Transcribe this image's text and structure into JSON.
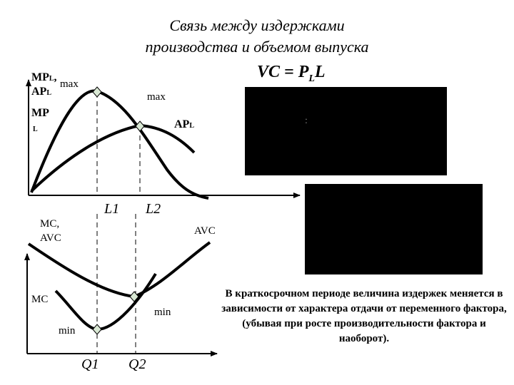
{
  "title": {
    "line1": "Связь между издержками",
    "line2": "производства и объемом выпуска"
  },
  "formula": {
    "main": "VC = P",
    "sub": "L",
    "tail": "L"
  },
  "top_graph": {
    "y_label_line1_main": "MP",
    "y_label_line1_sub": "L",
    "y_label_line1_sep": ",",
    "y_label_line2_main": "AP",
    "y_label_line2_sub": "L",
    "max_label_1": "max",
    "max_label_2": "max",
    "mp_label_main": "MP",
    "mp_label_sub": "L",
    "ap_label_main": "AP",
    "ap_label_sub": "L",
    "x_tick_1": "L1",
    "x_tick_2": "L2"
  },
  "bottom_graph": {
    "y_label_line1": "MC,",
    "y_label_line2": "AVC",
    "avc_label": "AVC",
    "mc_label": "MC",
    "min_label_1": "min",
    "min_label_2": "min",
    "x_tick_1": "Q1",
    "x_tick_2": "Q2"
  },
  "note": "В краткосрочном периоде величина издержек меняется в зависимости от характера отдачи от переменного фактора, (убывая при росте производительности фактора и наоборот).",
  "panel_glyph": ":",
  "colors": {
    "background": "#ffffff",
    "line": "#000000",
    "panel": "#000000",
    "marker_fill": "#d9e8d4"
  }
}
